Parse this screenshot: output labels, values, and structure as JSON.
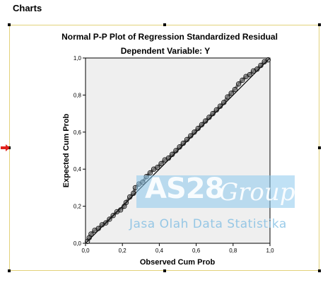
{
  "page": {
    "heading": "Charts"
  },
  "chart_data": {
    "type": "scatter",
    "title": "Normal P-P Plot of Regression Standardized Residual",
    "subtitle": "Dependent Variable: Y",
    "xlabel": "Observed Cum Prob",
    "ylabel": "Expected Cum Prob",
    "xlim": [
      0,
      1
    ],
    "ylim": [
      0,
      1
    ],
    "x_ticks": [
      "0,0",
      "0,2",
      "0,4",
      "0,6",
      "0,8",
      "1,0"
    ],
    "y_ticks": [
      "0,0",
      "0,2",
      "0,4",
      "0,6",
      "0,8",
      "1,0"
    ],
    "grid": false,
    "reference_line": {
      "from": [
        0,
        0
      ],
      "to": [
        1,
        1
      ]
    },
    "series": [
      {
        "marker": "open-circle",
        "points": [
          [
            0.01,
            0.01
          ],
          [
            0.02,
            0.03
          ],
          [
            0.03,
            0.05
          ],
          [
            0.05,
            0.07
          ],
          [
            0.07,
            0.08
          ],
          [
            0.09,
            0.1
          ],
          [
            0.11,
            0.11
          ],
          [
            0.13,
            0.13
          ],
          [
            0.15,
            0.15
          ],
          [
            0.17,
            0.17
          ],
          [
            0.19,
            0.18
          ],
          [
            0.21,
            0.2
          ],
          [
            0.22,
            0.22
          ],
          [
            0.24,
            0.25
          ],
          [
            0.26,
            0.27
          ],
          [
            0.27,
            0.3
          ],
          [
            0.29,
            0.32
          ],
          [
            0.31,
            0.33
          ],
          [
            0.33,
            0.36
          ],
          [
            0.35,
            0.38
          ],
          [
            0.37,
            0.4
          ],
          [
            0.39,
            0.41
          ],
          [
            0.41,
            0.43
          ],
          [
            0.43,
            0.45
          ],
          [
            0.45,
            0.46
          ],
          [
            0.47,
            0.48
          ],
          [
            0.49,
            0.5
          ],
          [
            0.51,
            0.52
          ],
          [
            0.53,
            0.54
          ],
          [
            0.55,
            0.56
          ],
          [
            0.57,
            0.58
          ],
          [
            0.59,
            0.6
          ],
          [
            0.61,
            0.62
          ],
          [
            0.63,
            0.64
          ],
          [
            0.65,
            0.66
          ],
          [
            0.67,
            0.68
          ],
          [
            0.69,
            0.7
          ],
          [
            0.71,
            0.72
          ],
          [
            0.73,
            0.74
          ],
          [
            0.75,
            0.76
          ],
          [
            0.77,
            0.79
          ],
          [
            0.79,
            0.81
          ],
          [
            0.81,
            0.83
          ],
          [
            0.83,
            0.86
          ],
          [
            0.85,
            0.88
          ],
          [
            0.87,
            0.9
          ],
          [
            0.89,
            0.91
          ],
          [
            0.91,
            0.93
          ],
          [
            0.93,
            0.94
          ],
          [
            0.95,
            0.96
          ],
          [
            0.97,
            0.98
          ],
          [
            0.99,
            0.99
          ]
        ]
      }
    ]
  },
  "watermark": {
    "brand": "AS28",
    "brand_suffix": "Group",
    "tagline": "Jasa Olah Data Statistika"
  },
  "colors": {
    "plot_background": "#efefef",
    "frame_border": "#e2d27a",
    "marker": "#222222",
    "selection_arrow": "#e0201b"
  }
}
